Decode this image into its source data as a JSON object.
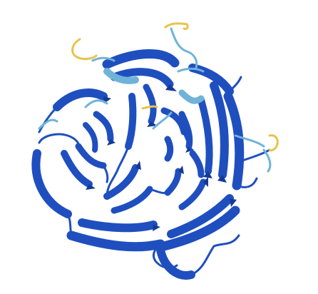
{
  "image": {
    "subject": "protein-structure-cartoon",
    "background_color": "#ffffff",
    "colors": {
      "very_high_confidence": "#1f4fbf",
      "very_high_confidence_dark": "#153a93",
      "confident": "#6fb3d9",
      "low_confidence": "#e8c34a"
    }
  }
}
